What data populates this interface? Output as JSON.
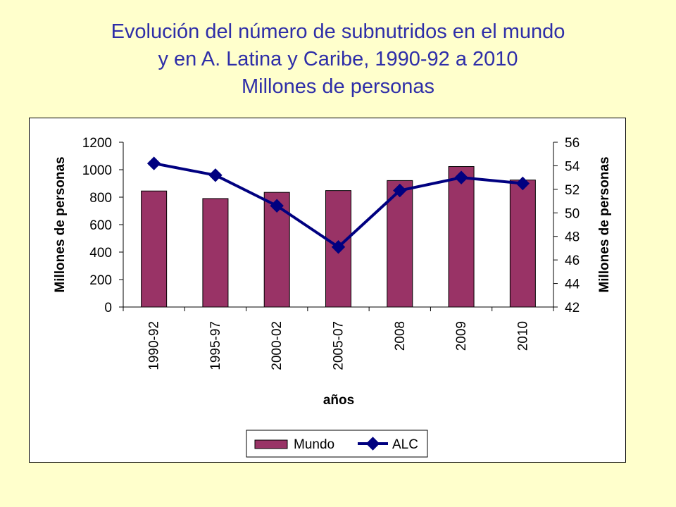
{
  "title": {
    "line1": "Evolución del número de subnutridos en el mundo",
    "line2": "y en A. Latina y Caribe, 1990-92 a 2010",
    "line3": "Millones de personas"
  },
  "chart_data": {
    "type": "bar",
    "categories": [
      "1990-92",
      "1995-97",
      "2000-02",
      "2005-07",
      "2008",
      "2009",
      "2010"
    ],
    "series": [
      {
        "name": "Mundo",
        "type": "bar",
        "axis": "left",
        "color": "#993366",
        "values": [
          845,
          790,
          835,
          848,
          921,
          1023,
          925
        ]
      },
      {
        "name": "ALC",
        "type": "line",
        "axis": "right",
        "color": "#000080",
        "values": [
          54.2,
          53.2,
          50.6,
          47.1,
          51.9,
          53.0,
          52.5
        ]
      }
    ],
    "xlabel": "años",
    "ylabel": "Millones de personas",
    "y2label": "Millones de personas",
    "ylim": [
      0,
      1200
    ],
    "yticks": [
      "0",
      "200",
      "400",
      "600",
      "800",
      "1000",
      "1200"
    ],
    "y2lim": [
      42,
      56
    ],
    "y2ticks": [
      "42",
      "44",
      "46",
      "48",
      "50",
      "52",
      "54",
      "56"
    ],
    "grid": false,
    "legend_position": "bottom"
  }
}
